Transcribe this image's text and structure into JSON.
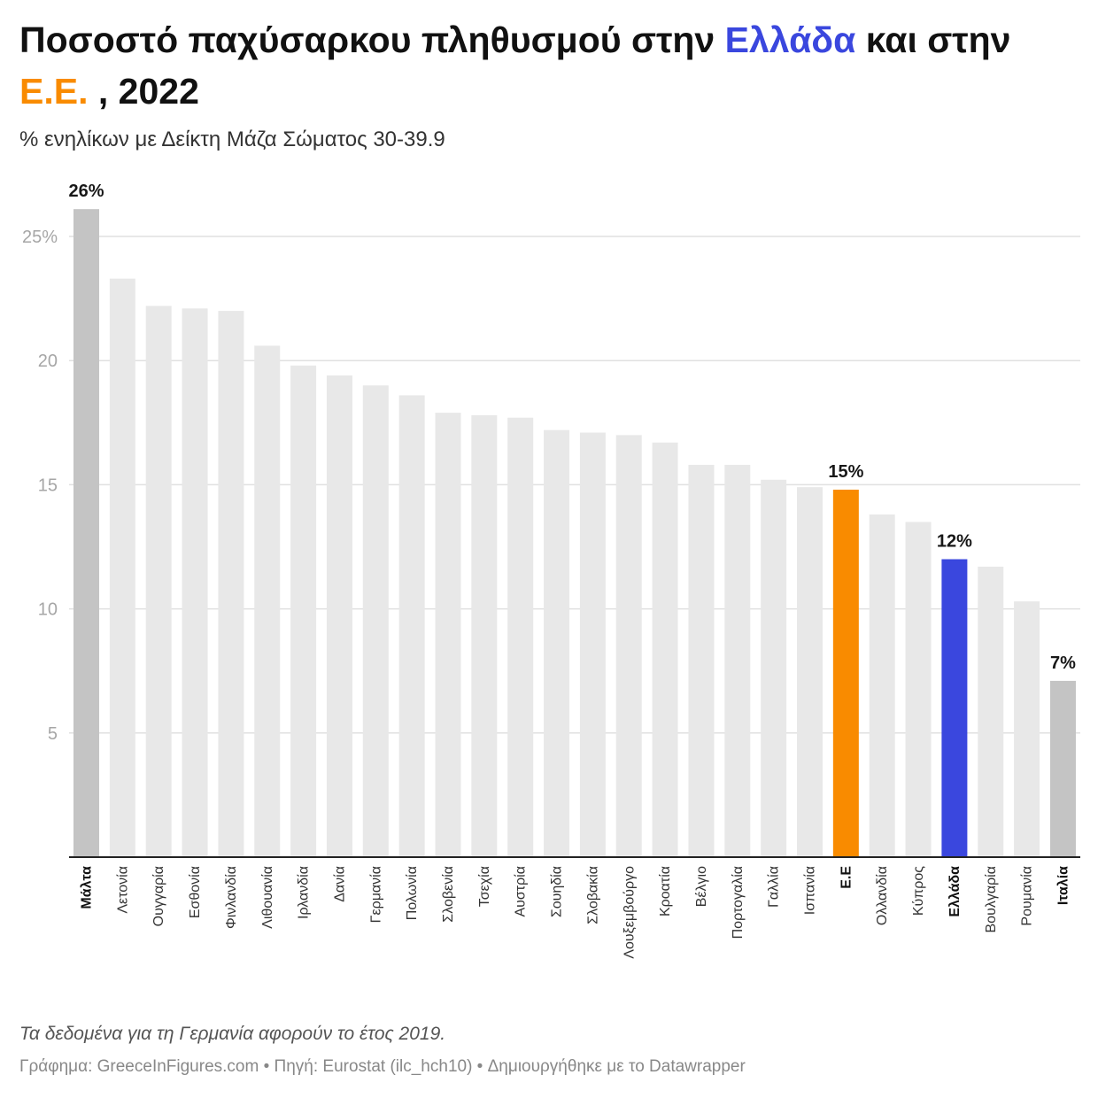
{
  "title": {
    "part1": "Ποσοστό παχύσαρκου πληθυσμού στην ",
    "greece": "Ελλάδα",
    "part2": " και στην ",
    "eu": "Ε.Ε.",
    "part3": " , 2022"
  },
  "subtitle": "% ενηλίκων με Δείκτη Μάζα Σώματος 30-39.9",
  "note": "Τα δεδομένα για τη Γερμανία αφορούν το έτος 2019.",
  "credits": "Γράφημα: GreeceInFigures.com • Πηγή: Eurostat (ilc_hch10) • Δημιουργήθηκε με το Datawrapper",
  "colors": {
    "default_bar": "#e8e8e8",
    "extreme_bar": "#c4c4c4",
    "eu_bar": "#f98b00",
    "greece_bar": "#3a47de",
    "grid": "#e0e0e0",
    "axis": "#222222"
  },
  "chart_data": {
    "type": "bar",
    "orientation": "vertical",
    "ylim": [
      0,
      26
    ],
    "yticks": [
      {
        "value": 5,
        "label": "5"
      },
      {
        "value": 10,
        "label": "10"
      },
      {
        "value": 15,
        "label": "15"
      },
      {
        "value": 20,
        "label": "20"
      },
      {
        "value": 25,
        "label": "25%"
      }
    ],
    "grid": true,
    "bars": [
      {
        "name": "Μάλτα",
        "value": 26.1,
        "label": "26%",
        "style": "extreme",
        "bold": true
      },
      {
        "name": "Λετονία",
        "value": 23.3
      },
      {
        "name": "Ουγγαρία",
        "value": 22.2
      },
      {
        "name": "Εσθονία",
        "value": 22.1
      },
      {
        "name": "Φινλανδία",
        "value": 22.0
      },
      {
        "name": "Λιθουανία",
        "value": 20.6
      },
      {
        "name": "Ιρλανδία",
        "value": 19.8
      },
      {
        "name": "Δανία",
        "value": 19.4
      },
      {
        "name": "Γερμανία",
        "value": 19.0
      },
      {
        "name": "Πολωνία",
        "value": 18.6
      },
      {
        "name": "Σλοβενία",
        "value": 17.9
      },
      {
        "name": "Τσεχία",
        "value": 17.8
      },
      {
        "name": "Αυστρία",
        "value": 17.7
      },
      {
        "name": "Σουηδία",
        "value": 17.2
      },
      {
        "name": "Σλοβακία",
        "value": 17.1
      },
      {
        "name": "Λουξεμβούργο",
        "value": 17.0
      },
      {
        "name": "Κροατία",
        "value": 16.7
      },
      {
        "name": "Βέλγιο",
        "value": 15.8
      },
      {
        "name": "Πορτογαλία",
        "value": 15.8
      },
      {
        "name": "Γαλλία",
        "value": 15.2
      },
      {
        "name": "Ισπανία",
        "value": 14.9
      },
      {
        "name": "Ε.Ε",
        "value": 14.8,
        "label": "15%",
        "style": "eu",
        "bold": true
      },
      {
        "name": "Ολλανδία",
        "value": 13.8
      },
      {
        "name": "Κύπρος",
        "value": 13.5
      },
      {
        "name": "Ελλάδα",
        "value": 12.0,
        "label": "12%",
        "style": "greece",
        "bold": true
      },
      {
        "name": "Βουλγαρία",
        "value": 11.7
      },
      {
        "name": "Ρουμανία",
        "value": 10.3
      },
      {
        "name": "Ιταλία",
        "value": 7.1,
        "label": "7%",
        "style": "extreme",
        "bold": true
      }
    ]
  }
}
